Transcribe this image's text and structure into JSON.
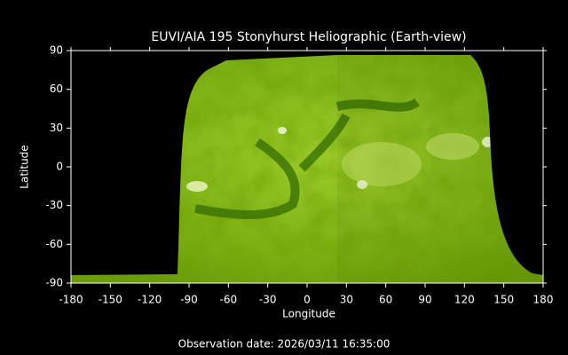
{
  "chart_data": {
    "type": "image",
    "title": "EUVI/AIA 195 Stonyhurst Heliographic (Earth-view)",
    "xlabel": "Longitude",
    "ylabel": "Latitude",
    "xlim": [
      -180,
      180
    ],
    "ylim": [
      -90,
      90
    ],
    "xticks": [
      -180,
      -150,
      -120,
      -90,
      -60,
      -30,
      0,
      30,
      60,
      90,
      120,
      150,
      180
    ],
    "yticks": [
      -90,
      -60,
      -30,
      0,
      30,
      60,
      90
    ],
    "footer": "Observation date: 2026/03/11 16:35:00"
  }
}
